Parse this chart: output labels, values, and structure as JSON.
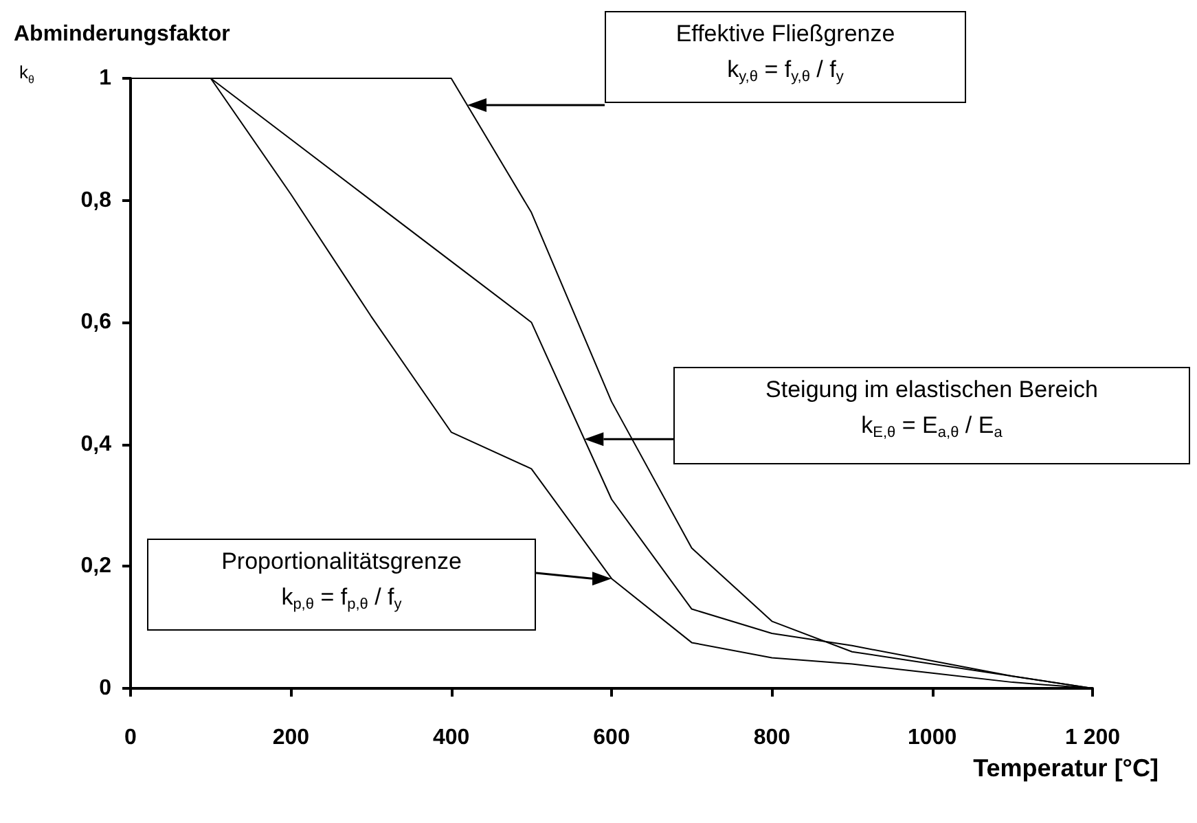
{
  "chart_data": {
    "type": "line",
    "title": "Abminderungsfaktor",
    "ylabel": "k$_{θ}$",
    "xlabel": "Temperatur [°C]",
    "x": [
      0,
      100,
      200,
      300,
      400,
      500,
      600,
      700,
      800,
      900,
      1000,
      1100,
      1200
    ],
    "series": [
      {
        "color": "#000000",
        "values": [
          1,
          1,
          1,
          1,
          1,
          0.78,
          0.47,
          0.23,
          0.11,
          0.06,
          0.04,
          0.02,
          0
        ]
      },
      {
        "color": "#000000",
        "values": [
          1,
          1,
          0.9,
          0.8,
          0.7,
          0.6,
          0.31,
          0.13,
          0.09,
          0.07,
          0.045,
          0.02,
          0
        ]
      },
      {
        "color": "#000000",
        "values": [
          1,
          1,
          0.81,
          0.61,
          0.42,
          0.36,
          0.18,
          0.075,
          0.05,
          0.04,
          0.025,
          0.01,
          0
        ]
      }
    ],
    "annotations": [
      "Effektive Fließgrenze\nk$_{y,θ}$ = f$_{y,θ}$ / f$_{y}$",
      "Steigung im elastischen Bereich\nk$_{E,θ}$ = E$_{a,θ}$ / E$_{a}$",
      "Proportionalitätsgrenze\nk$_{p,θ}$ = f$_{p,θ}$ / f$_{y}$"
    ],
    "xlim": [
      0,
      1200
    ],
    "xticks": [
      0,
      200,
      400,
      600,
      800,
      1000,
      {
        "value": 1200,
        "label": "1 200"
      }
    ],
    "ylim": [
      0,
      1
    ],
    "yticks": [
      0,
      {
        "value": 0.2,
        "label": "0,2"
      },
      {
        "value": 0.4,
        "label": "0,4"
      },
      {
        "value": 0.6,
        "label": "0,6"
      },
      {
        "value": 0.8,
        "label": "0,8"
      },
      1
    ],
    "grid": false,
    "marker": "none"
  }
}
